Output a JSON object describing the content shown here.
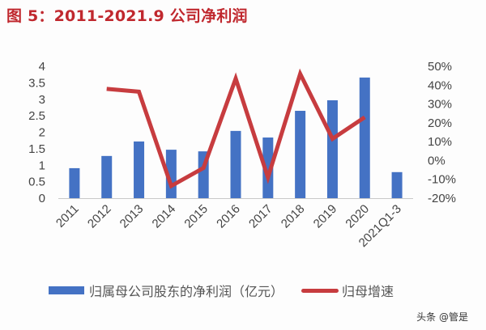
{
  "title": "图 5：2011-2021.9 公司净利润",
  "chart_data": {
    "type": "bar+line",
    "title": "图 5：2011-2021.9 公司净利润",
    "categories": [
      "2011",
      "2012",
      "2013",
      "2014",
      "2015",
      "2016",
      "2017",
      "2018",
      "2019",
      "2020",
      "2021Q1-3"
    ],
    "series": [
      {
        "name": "归属母公司股东的净利润（亿元）",
        "type": "bar",
        "axis": "left",
        "color": "#4472c4",
        "values": [
          0.91,
          1.28,
          1.72,
          1.47,
          1.42,
          2.04,
          1.84,
          2.65,
          2.97,
          3.66,
          0.79
        ]
      },
      {
        "name": "归母增速",
        "type": "line",
        "axis": "right",
        "color": "#c73c3f",
        "unit": "%",
        "values": [
          null,
          38,
          36.5,
          -13.5,
          -4,
          43.5,
          -9,
          46,
          11.5,
          23,
          null
        ]
      }
    ],
    "left_axis": {
      "ylim": [
        0,
        4
      ],
      "ticks": [
        "0",
        "0.5",
        "1",
        "1.5",
        "2",
        "2.5",
        "3",
        "3.5",
        "4"
      ]
    },
    "right_axis": {
      "ylim": [
        -20,
        50
      ],
      "ticks": [
        "-20%",
        "-10%",
        "0%",
        "10%",
        "20%",
        "30%",
        "40%",
        "50%"
      ]
    },
    "xlabel": "",
    "ylabel": "",
    "grid": false,
    "legend_position": "bottom"
  },
  "legend": {
    "bar_label": "归属母公司股东的净利润（亿元）",
    "line_label": "归母增速"
  },
  "watermark": "头条 @管是"
}
